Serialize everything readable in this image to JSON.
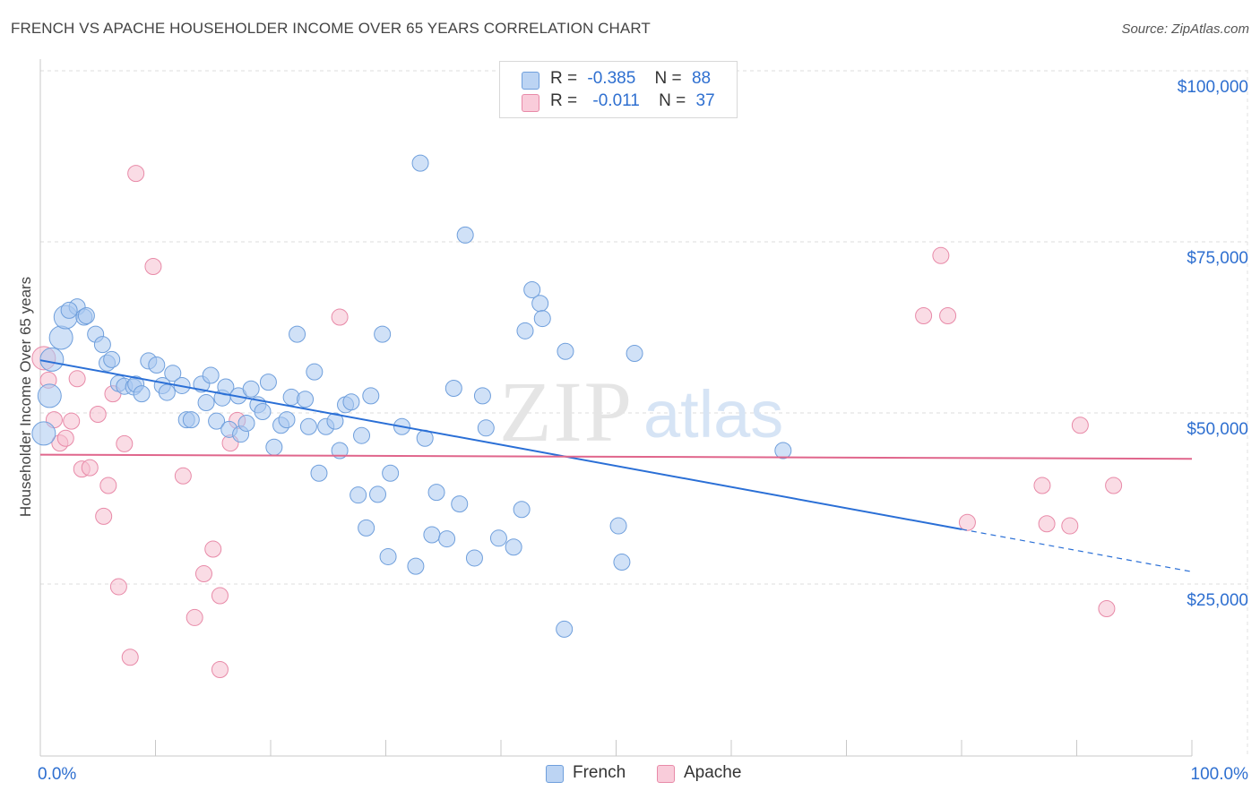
{
  "title": "FRENCH VS APACHE HOUSEHOLDER INCOME OVER 65 YEARS CORRELATION CHART",
  "source": "Source: ZipAtlas.com",
  "watermark": {
    "zip": "ZIP",
    "atlas": "atlas"
  },
  "legend": {
    "french": {
      "r_label": "R =",
      "r_value": "-0.385",
      "n_label": "N =",
      "n_value": "88"
    },
    "apache": {
      "r_label": "R =",
      "r_value": "-0.011",
      "n_label": "N =",
      "n_value": "37"
    }
  },
  "chart_data": {
    "type": "scatter",
    "title": "FRENCH VS APACHE HOUSEHOLDER INCOME OVER 65 YEARS CORRELATION CHART",
    "xlabel": "",
    "ylabel": "Householder Income Over 65 years",
    "xlim": [
      0,
      100
    ],
    "ylim": [
      5000,
      105000
    ],
    "x_tick_labels": [
      "0.0%",
      "100.0%"
    ],
    "y_ticks": [
      25000,
      50000,
      75000,
      100000
    ],
    "y_tick_labels": [
      "$25,000",
      "$50,000",
      "$75,000",
      "$100,000"
    ],
    "grid": true,
    "legend_position": "top-center",
    "colors": {
      "french": "#a9c8f0",
      "french_stroke": "#6f9fdc",
      "french_line": "#2a6fd6",
      "apache": "#f6bfd0",
      "apache_stroke": "#e88aa8",
      "apache_line": "#e0668c",
      "axis_label": "#2e6fd0"
    },
    "series": [
      {
        "name": "French",
        "points": [
          [
            0.3,
            47000,
            2
          ],
          [
            0.8,
            52500,
            2
          ],
          [
            1.0,
            57800,
            2
          ],
          [
            1.8,
            61000,
            2
          ],
          [
            2.2,
            64000,
            2
          ],
          [
            3.2,
            65500,
            1
          ],
          [
            2.5,
            65000,
            1
          ],
          [
            3.8,
            64000,
            1
          ],
          [
            4.0,
            64200,
            1
          ],
          [
            4.8,
            61500,
            1
          ],
          [
            5.4,
            60000,
            1
          ],
          [
            5.8,
            57300,
            1
          ],
          [
            6.2,
            57800,
            1
          ],
          [
            6.8,
            54300,
            1
          ],
          [
            7.3,
            53900,
            1
          ],
          [
            8.1,
            53800,
            1
          ],
          [
            8.3,
            54200,
            1
          ],
          [
            8.8,
            52800,
            1
          ],
          [
            9.4,
            57600,
            1
          ],
          [
            10.1,
            57000,
            1
          ],
          [
            10.6,
            54000,
            1
          ],
          [
            11.0,
            53000,
            1
          ],
          [
            11.5,
            55800,
            1
          ],
          [
            12.3,
            54000,
            1
          ],
          [
            12.7,
            49000,
            1
          ],
          [
            13.1,
            49000,
            1
          ],
          [
            14.0,
            54200,
            1
          ],
          [
            14.4,
            51500,
            1
          ],
          [
            14.8,
            55500,
            1
          ],
          [
            15.3,
            48800,
            1
          ],
          [
            15.8,
            52200,
            1
          ],
          [
            16.1,
            53800,
            1
          ],
          [
            16.4,
            47600,
            1
          ],
          [
            17.2,
            52500,
            1
          ],
          [
            17.4,
            46900,
            1
          ],
          [
            17.9,
            48500,
            1
          ],
          [
            18.3,
            53500,
            1
          ],
          [
            18.9,
            51200,
            1
          ],
          [
            19.3,
            50200,
            1
          ],
          [
            19.8,
            54500,
            1
          ],
          [
            20.3,
            45000,
            1
          ],
          [
            20.9,
            48200,
            1
          ],
          [
            21.4,
            49000,
            1
          ],
          [
            21.8,
            52300,
            1
          ],
          [
            22.3,
            61500,
            1
          ],
          [
            23.0,
            52000,
            1
          ],
          [
            23.3,
            48000,
            1
          ],
          [
            23.8,
            56000,
            1
          ],
          [
            24.2,
            41200,
            1
          ],
          [
            24.8,
            48000,
            1
          ],
          [
            25.6,
            48800,
            1
          ],
          [
            26.0,
            44500,
            1
          ],
          [
            26.5,
            51200,
            1
          ],
          [
            27.0,
            51600,
            1
          ],
          [
            27.6,
            38000,
            1
          ],
          [
            27.9,
            46700,
            1
          ],
          [
            28.3,
            33200,
            1
          ],
          [
            28.7,
            52500,
            1
          ],
          [
            29.3,
            38100,
            1
          ],
          [
            29.7,
            61500,
            1
          ],
          [
            30.2,
            29000,
            1
          ],
          [
            30.4,
            41200,
            1
          ],
          [
            31.4,
            48000,
            1
          ],
          [
            32.6,
            27600,
            1
          ],
          [
            33.0,
            86500,
            1
          ],
          [
            33.4,
            46300,
            1
          ],
          [
            34.0,
            32200,
            1
          ],
          [
            34.4,
            38400,
            1
          ],
          [
            35.3,
            31600,
            1
          ],
          [
            35.9,
            53600,
            1
          ],
          [
            36.4,
            36700,
            1
          ],
          [
            36.9,
            76000,
            1
          ],
          [
            37.7,
            28800,
            1
          ],
          [
            38.4,
            52500,
            1
          ],
          [
            38.7,
            47800,
            1
          ],
          [
            39.8,
            31700,
            1
          ],
          [
            41.1,
            30400,
            1
          ],
          [
            41.8,
            35900,
            1
          ],
          [
            42.1,
            62000,
            1
          ],
          [
            42.7,
            68000,
            1
          ],
          [
            43.4,
            66000,
            1
          ],
          [
            43.6,
            63800,
            1
          ],
          [
            45.5,
            18400,
            1
          ],
          [
            45.6,
            59000,
            1
          ],
          [
            50.2,
            33500,
            1
          ],
          [
            50.5,
            28200,
            1
          ],
          [
            51.6,
            58700,
            1
          ],
          [
            64.5,
            44500,
            1
          ]
        ],
        "trend": {
          "x": [
            0,
            80
          ],
          "y": [
            57700,
            33000
          ],
          "dashed_to": [
            100,
            26800
          ]
        }
      },
      {
        "name": "Apache",
        "points": [
          [
            0.3,
            58000,
            2
          ],
          [
            0.7,
            54800,
            1
          ],
          [
            1.2,
            49000,
            1
          ],
          [
            1.7,
            45600,
            1
          ],
          [
            2.2,
            46300,
            1
          ],
          [
            2.7,
            48800,
            1
          ],
          [
            3.2,
            55000,
            1
          ],
          [
            3.6,
            41800,
            1
          ],
          [
            4.3,
            42000,
            1
          ],
          [
            5.0,
            49800,
            1
          ],
          [
            5.5,
            34900,
            1
          ],
          [
            5.9,
            39400,
            1
          ],
          [
            6.3,
            52800,
            1
          ],
          [
            6.8,
            24600,
            1
          ],
          [
            7.3,
            45500,
            1
          ],
          [
            7.8,
            14300,
            1
          ],
          [
            8.3,
            85000,
            1
          ],
          [
            9.8,
            71400,
            1
          ],
          [
            12.4,
            40800,
            1
          ],
          [
            13.4,
            20100,
            1
          ],
          [
            14.2,
            26500,
            1
          ],
          [
            15.0,
            30100,
            1
          ],
          [
            15.6,
            23300,
            1
          ],
          [
            15.6,
            12500,
            1
          ],
          [
            16.5,
            45600,
            1
          ],
          [
            17.1,
            48900,
            1
          ],
          [
            26.0,
            64000,
            1
          ],
          [
            76.7,
            64200,
            1
          ],
          [
            78.2,
            73000,
            1
          ],
          [
            78.8,
            64200,
            1
          ],
          [
            80.5,
            34000,
            1
          ],
          [
            87.0,
            39400,
            1
          ],
          [
            87.4,
            33800,
            1
          ],
          [
            89.4,
            33500,
            1
          ],
          [
            90.3,
            48200,
            1
          ],
          [
            92.6,
            21400,
            1
          ],
          [
            93.2,
            39400,
            1
          ]
        ],
        "trend": {
          "x": [
            0,
            100
          ],
          "y": [
            43900,
            43300
          ]
        }
      }
    ]
  },
  "bottom_legend": {
    "french_label": "French",
    "apache_label": "Apache"
  }
}
